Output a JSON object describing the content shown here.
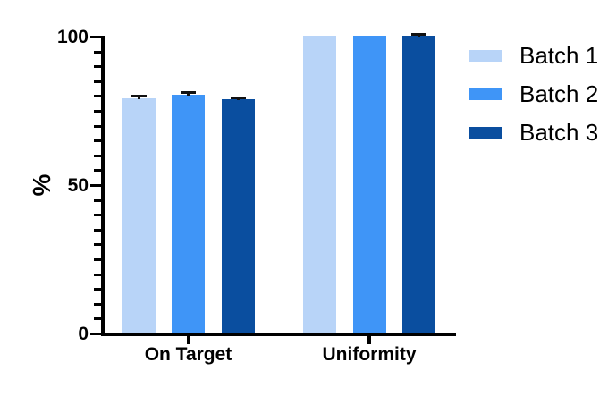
{
  "figure": {
    "background": "#ffffff"
  },
  "chart_data": {
    "type": "bar",
    "title": "",
    "xlabel": "",
    "ylabel": "%",
    "categories": [
      "On Target",
      "Uniformity"
    ],
    "series": [
      {
        "name": "Batch 1",
        "color": "#B8D4F8",
        "values": [
          79,
          100
        ],
        "errors": [
          0.8,
          0
        ]
      },
      {
        "name": "Batch 2",
        "color": "#3F95F7",
        "values": [
          80,
          100
        ],
        "errors": [
          0.8,
          0
        ]
      },
      {
        "name": "Batch 3",
        "color": "#0A4E9F",
        "values": [
          78.5,
          100
        ],
        "errors": [
          0.6,
          0.4
        ]
      }
    ],
    "ylim": [
      0,
      100
    ],
    "y_major_ticks": [
      0,
      50,
      100
    ],
    "y_minor_tick_step": 5,
    "grid": false,
    "legend_position": "right",
    "axis_color": "#000000",
    "error_bar_color": "#111111"
  }
}
